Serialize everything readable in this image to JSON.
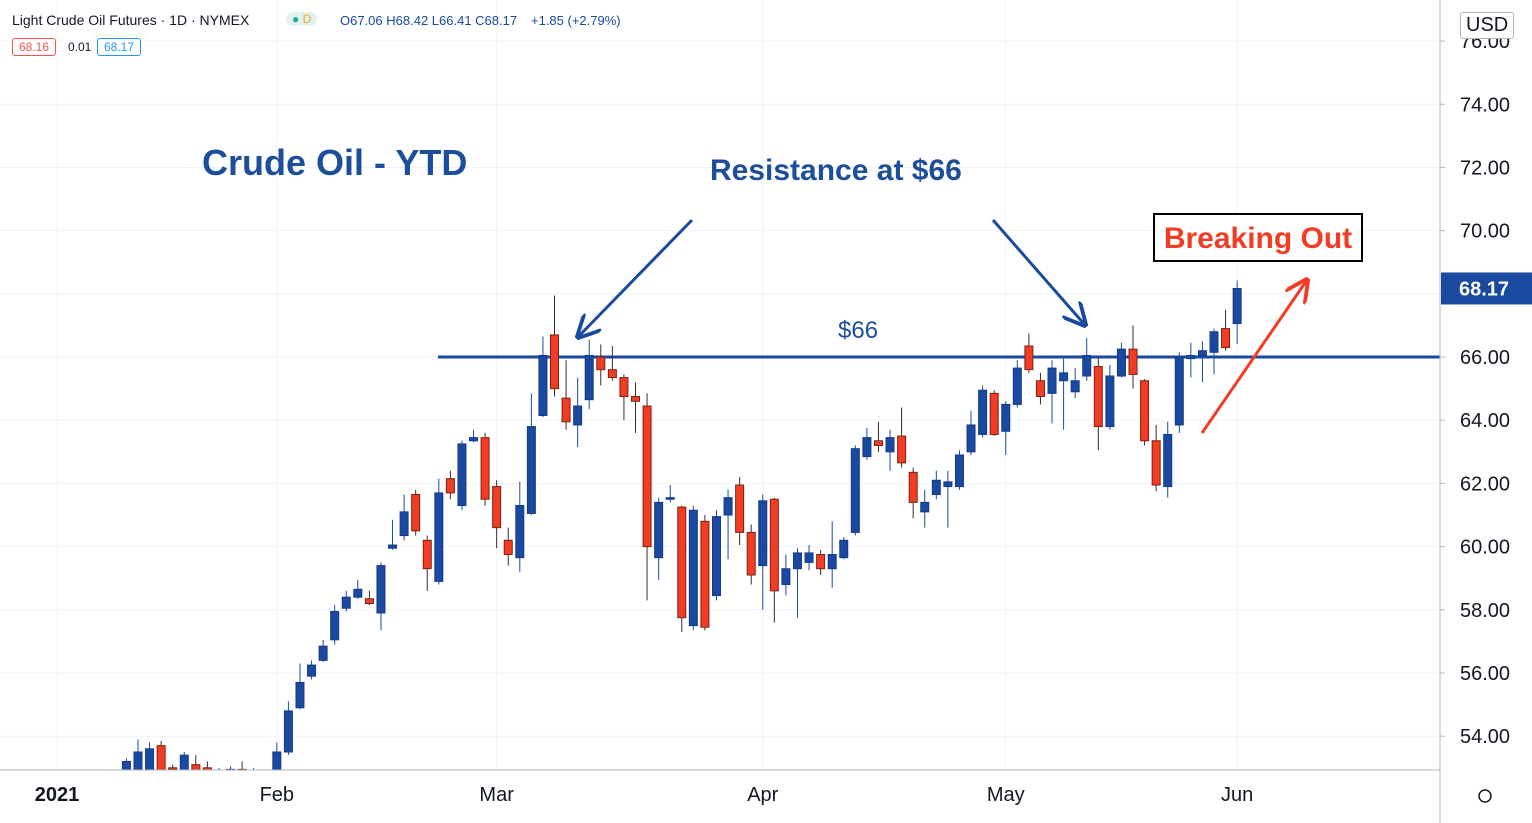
{
  "header": {
    "symbol": "Light Crude Oil Futures · 1D · NYMEX",
    "badge": "D",
    "ohlc": "O67.06 H68.42 L66.41 C68.17",
    "change": "+1.85 (+2.79%)",
    "bid": "68.16",
    "spread": "0.01",
    "ask": "68.17",
    "currency": "USD"
  },
  "chart_data": {
    "type": "candlestick",
    "title": "Crude Oil - YTD",
    "annotations": {
      "resistance": "Resistance at $66",
      "level_label": "$66",
      "breakout": "Breaking Out"
    },
    "resistance_level": 66,
    "up_color": "#1a4aa0",
    "down_color": "#f23d24",
    "grid": true,
    "ylim": [
      52.93,
      77.3
    ],
    "yticks": [
      {
        "value": 54,
        "label": "54.00"
      },
      {
        "value": 56,
        "label": "56.00"
      },
      {
        "value": 58,
        "label": "58.00"
      },
      {
        "value": 60,
        "label": "60.00"
      },
      {
        "value": 62,
        "label": "62.00"
      },
      {
        "value": 64,
        "label": "64.00"
      },
      {
        "value": 66,
        "label": "66.00"
      },
      {
        "value": 68,
        "label": "68.00"
      },
      {
        "value": 70,
        "label": "70.00"
      },
      {
        "value": 72,
        "label": "72.00"
      },
      {
        "value": 74,
        "label": "74.00"
      },
      {
        "value": 76,
        "label": "76.00"
      }
    ],
    "categories": [
      "2021",
      null,
      null,
      null,
      null,
      null,
      null,
      null,
      null,
      null,
      null,
      null,
      null,
      null,
      null,
      null,
      null,
      null,
      null,
      "Feb",
      null,
      null,
      null,
      null,
      null,
      null,
      null,
      null,
      null,
      null,
      null,
      null,
      null,
      null,
      null,
      null,
      null,
      null,
      "Mar",
      null,
      null,
      null,
      null,
      null,
      null,
      null,
      null,
      null,
      null,
      null,
      null,
      null,
      null,
      null,
      null,
      null,
      null,
      null,
      null,
      null,
      null,
      "Apr",
      null,
      null,
      null,
      null,
      null,
      null,
      null,
      null,
      null,
      null,
      null,
      null,
      null,
      null,
      null,
      null,
      null,
      null,
      null,
      null,
      "May",
      null,
      null,
      null,
      null,
      null,
      null,
      null,
      null,
      null,
      null,
      null,
      null,
      null,
      null,
      null,
      null,
      null,
      null,
      null,
      "Jun"
    ],
    "open": [
      null,
      null,
      null,
      null,
      null,
      null,
      52.7,
      52.5,
      52.8,
      53.7,
      53.0,
      52.9,
      53.1,
      53.0,
      52.8,
      52.9,
      52.95,
      52.8,
      52.7,
      52.6,
      53.5,
      54.9,
      55.9,
      56.4,
      57.05,
      58.05,
      58.4,
      58.35,
      57.9,
      59.95,
      60.35,
      61.65,
      60.2,
      58.9,
      62.15,
      61.3,
      63.35,
      63.45,
      61.9,
      60.2,
      59.65,
      61.05,
      64.15,
      66.7,
      64.7,
      63.85,
      64.65,
      66.0,
      65.6,
      65.35,
      64.75,
      64.45,
      59.65,
      61.5,
      61.25,
      57.5,
      60.8,
      58.45,
      61.0,
      61.95,
      60.45,
      59.4,
      61.5,
      58.8,
      59.3,
      59.5,
      59.75,
      59.3,
      59.65,
      60.45,
      62.85,
      63.35,
      63.0,
      63.5,
      62.35,
      61.1,
      61.65,
      61.9,
      61.9,
      63.0,
      63.55,
      64.85,
      63.65,
      64.5,
      66.35,
      65.25,
      64.85,
      65.25,
      64.9,
      65.4,
      65.7,
      63.8,
      65.4,
      66.25,
      65.25,
      63.35,
      61.9,
      63.85,
      65.95,
      66.05,
      66.15,
      66.9,
      67.06
    ],
    "high": [
      null,
      null,
      null,
      null,
      null,
      null,
      53.3,
      53.9,
      53.8,
      53.85,
      53.1,
      53.5,
      53.4,
      53.2,
      53.0,
      53.05,
      53.2,
      53.0,
      52.9,
      53.8,
      55.1,
      56.3,
      56.4,
      57.05,
      58.15,
      58.6,
      58.95,
      58.6,
      59.5,
      60.85,
      61.65,
      61.8,
      60.35,
      62.15,
      62.4,
      63.35,
      63.7,
      63.6,
      62.1,
      60.6,
      62.05,
      64.85,
      66.65,
      67.95,
      65.9,
      65.35,
      66.55,
      66.4,
      66.35,
      65.45,
      65.2,
      64.85,
      61.55,
      61.95,
      61.3,
      61.3,
      61.0,
      61.15,
      61.8,
      62.2,
      60.7,
      61.65,
      61.55,
      59.75,
      59.95,
      60.05,
      59.9,
      60.8,
      60.3,
      63.2,
      63.75,
      63.95,
      63.7,
      64.4,
      62.5,
      61.8,
      62.4,
      62.4,
      63.05,
      64.3,
      65.1,
      64.95,
      64.6,
      65.9,
      66.75,
      65.5,
      65.9,
      65.95,
      65.65,
      66.6,
      65.95,
      65.75,
      66.45,
      67.0,
      65.3,
      63.85,
      63.95,
      66.15,
      66.45,
      66.5,
      66.9,
      67.5,
      68.42
    ],
    "low": [
      null,
      null,
      null,
      null,
      null,
      null,
      52.6,
      52.3,
      52.7,
      52.6,
      52.8,
      52.8,
      52.7,
      52.7,
      52.6,
      52.7,
      52.6,
      52.5,
      52.4,
      52.4,
      53.4,
      54.85,
      55.8,
      56.35,
      56.9,
      57.95,
      58.35,
      58.15,
      57.35,
      59.9,
      60.2,
      60.35,
      58.6,
      58.8,
      61.5,
      61.15,
      63.3,
      61.3,
      59.95,
      59.4,
      59.2,
      61.0,
      64.1,
      64.75,
      63.7,
      63.15,
      64.35,
      65.1,
      65.25,
      64.0,
      63.6,
      58.3,
      58.95,
      61.4,
      57.3,
      57.35,
      57.35,
      58.3,
      59.6,
      60.05,
      58.8,
      58.0,
      57.6,
      58.45,
      57.75,
      59.25,
      59.1,
      58.7,
      59.6,
      60.35,
      62.75,
      63.0,
      62.4,
      62.5,
      60.9,
      60.6,
      61.5,
      60.6,
      61.8,
      62.9,
      63.45,
      63.5,
      62.9,
      64.4,
      65.5,
      64.5,
      63.9,
      63.7,
      64.7,
      65.25,
      63.05,
      63.7,
      65.35,
      65.0,
      63.2,
      61.75,
      61.55,
      63.6,
      65.35,
      65.2,
      65.45,
      66.2,
      66.41
    ],
    "close": [
      null,
      null,
      null,
      null,
      null,
      null,
      53.2,
      53.5,
      53.6,
      52.9,
      52.95,
      53.4,
      52.9,
      52.9,
      52.85,
      52.95,
      52.9,
      52.85,
      52.6,
      53.5,
      54.8,
      55.7,
      56.25,
      56.85,
      57.95,
      58.4,
      58.65,
      58.2,
      59.4,
      60.05,
      61.1,
      60.5,
      59.3,
      61.7,
      61.7,
      63.25,
      63.45,
      61.5,
      60.6,
      59.75,
      61.3,
      63.8,
      66.05,
      65.0,
      63.95,
      64.45,
      66.05,
      65.6,
      65.35,
      64.75,
      64.6,
      60.0,
      61.4,
      61.55,
      57.75,
      61.15,
      57.45,
      60.95,
      61.55,
      60.45,
      59.1,
      61.45,
      58.6,
      59.3,
      59.8,
      59.8,
      59.3,
      59.75,
      60.2,
      63.1,
      63.45,
      63.2,
      63.45,
      62.65,
      61.4,
      61.4,
      62.1,
      62.05,
      62.9,
      63.85,
      64.95,
      63.55,
      64.5,
      65.65,
      65.6,
      64.75,
      65.65,
      65.5,
      65.25,
      66.05,
      63.8,
      65.4,
      66.25,
      65.45,
      63.35,
      61.95,
      63.55,
      66.0,
      66.05,
      66.2,
      66.8,
      66.3,
      68.17
    ]
  }
}
